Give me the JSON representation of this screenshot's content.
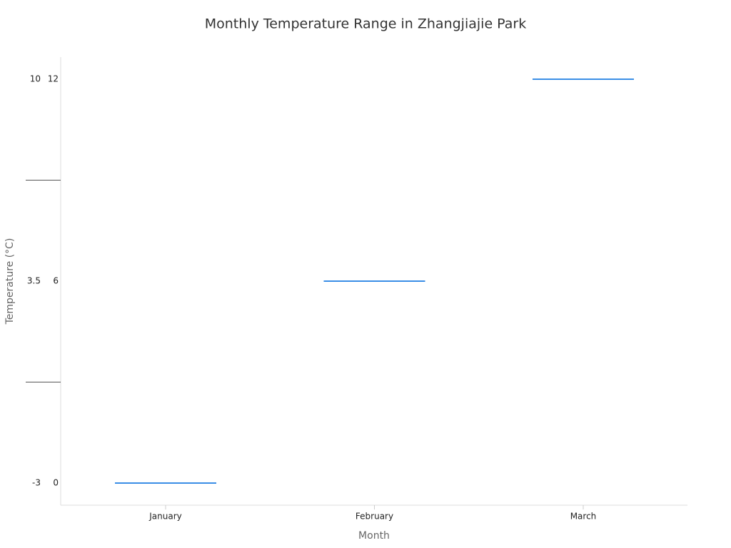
{
  "chart_data": {
    "type": "range",
    "title": "Monthly Temperature Range in Zhangjiajie Park",
    "x_label": "Month",
    "y_label": "Temperature (°C)",
    "categories": [
      "January",
      "February",
      "March"
    ],
    "low": [
      -3,
      3.5,
      10
    ],
    "high": [
      0,
      6,
      12
    ],
    "color": "#3a8ee6"
  }
}
